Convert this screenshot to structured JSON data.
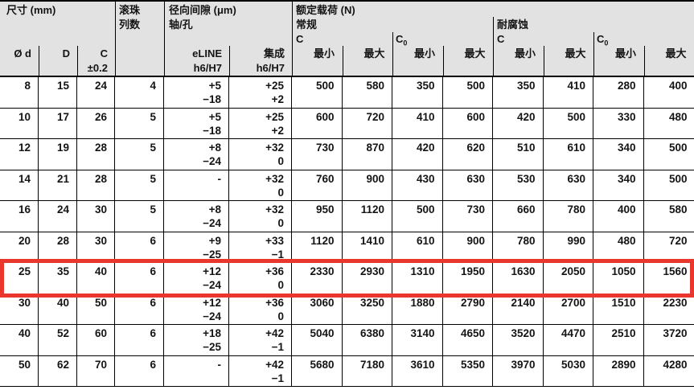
{
  "table": {
    "header": {
      "group_size": "尺寸 (mm)",
      "group_balls_line1": "滚珠",
      "group_balls_line2": "列数",
      "group_clearance_line1": "径向间隙 (μm)",
      "group_clearance_line2": "轴/孔",
      "group_load": "额定载荷 (N)",
      "subgroup_standard": "常规",
      "subgroup_corrosion": "耐腐蚀",
      "c_label": "C",
      "c0_base": "C",
      "c0_sub": "0",
      "col_d": "Ø d",
      "col_outer": "D",
      "col_c_line1": "C",
      "col_c_line2": "±0.2",
      "col_eline_line1": "eLINE",
      "col_eline_line2": "h6/H7",
      "col_integrated_line1": "集成",
      "col_integrated_line2": "h6/H7",
      "min_label": "最小",
      "max_label": "最大"
    },
    "rows": [
      {
        "d": "8",
        "outer": "15",
        "c": "24",
        "balls": "4",
        "eline": [
          "+5",
          "−18"
        ],
        "integrated": [
          "+25",
          "+2"
        ],
        "loads": [
          "500",
          "580",
          "350",
          "500",
          "350",
          "410",
          "280",
          "400"
        ],
        "highlighted": false
      },
      {
        "d": "10",
        "outer": "17",
        "c": "26",
        "balls": "5",
        "eline": [
          "+5",
          "−18"
        ],
        "integrated": [
          "+25",
          "+2"
        ],
        "loads": [
          "600",
          "720",
          "410",
          "600",
          "420",
          "500",
          "330",
          "480"
        ],
        "highlighted": false
      },
      {
        "d": "12",
        "outer": "19",
        "c": "28",
        "balls": "5",
        "eline": [
          "+8",
          "−24"
        ],
        "integrated": [
          "+32",
          "0"
        ],
        "loads": [
          "730",
          "870",
          "420",
          "620",
          "510",
          "610",
          "340",
          "500"
        ],
        "highlighted": false
      },
      {
        "d": "14",
        "outer": "21",
        "c": "28",
        "balls": "5",
        "eline": [
          "-",
          ""
        ],
        "integrated": [
          "+32",
          "0"
        ],
        "loads": [
          "760",
          "900",
          "430",
          "630",
          "530",
          "630",
          "340",
          "500"
        ],
        "highlighted": false
      },
      {
        "d": "16",
        "outer": "24",
        "c": "30",
        "balls": "5",
        "eline": [
          "+8",
          "−24"
        ],
        "integrated": [
          "+32",
          "0"
        ],
        "loads": [
          "950",
          "1120",
          "500",
          "730",
          "660",
          "780",
          "400",
          "580"
        ],
        "highlighted": false
      },
      {
        "d": "20",
        "outer": "28",
        "c": "30",
        "balls": "6",
        "eline": [
          "+9",
          "−25"
        ],
        "integrated": [
          "+33",
          "−1"
        ],
        "loads": [
          "1120",
          "1410",
          "610",
          "900",
          "780",
          "990",
          "480",
          "720"
        ],
        "highlighted": false
      },
      {
        "d": "25",
        "outer": "35",
        "c": "40",
        "balls": "6",
        "eline": [
          "+12",
          "−24"
        ],
        "integrated": [
          "+36",
          "0"
        ],
        "loads": [
          "2330",
          "2930",
          "1310",
          "1950",
          "1630",
          "2050",
          "1050",
          "1560"
        ],
        "highlighted": true
      },
      {
        "d": "30",
        "outer": "40",
        "c": "50",
        "balls": "6",
        "eline": [
          "+12",
          "−24"
        ],
        "integrated": [
          "+36",
          "0"
        ],
        "loads": [
          "3060",
          "3250",
          "1880",
          "2790",
          "2140",
          "2700",
          "1510",
          "2230"
        ],
        "highlighted": false
      },
      {
        "d": "40",
        "outer": "52",
        "c": "60",
        "balls": "6",
        "eline": [
          "+18",
          "−25"
        ],
        "integrated": [
          "+42",
          "−1"
        ],
        "loads": [
          "5040",
          "6380",
          "3140",
          "4650",
          "3520",
          "4470",
          "2510",
          "3720"
        ],
        "highlighted": false
      },
      {
        "d": "50",
        "outer": "62",
        "c": "70",
        "balls": "6",
        "eline": [
          "-",
          ""
        ],
        "integrated": [
          "+42",
          "−1"
        ],
        "loads": [
          "5680",
          "7180",
          "3610",
          "5350",
          "3970",
          "5030",
          "2890",
          "4280"
        ],
        "highlighted": false
      }
    ]
  },
  "highlight": {
    "color": "#ea372e"
  }
}
